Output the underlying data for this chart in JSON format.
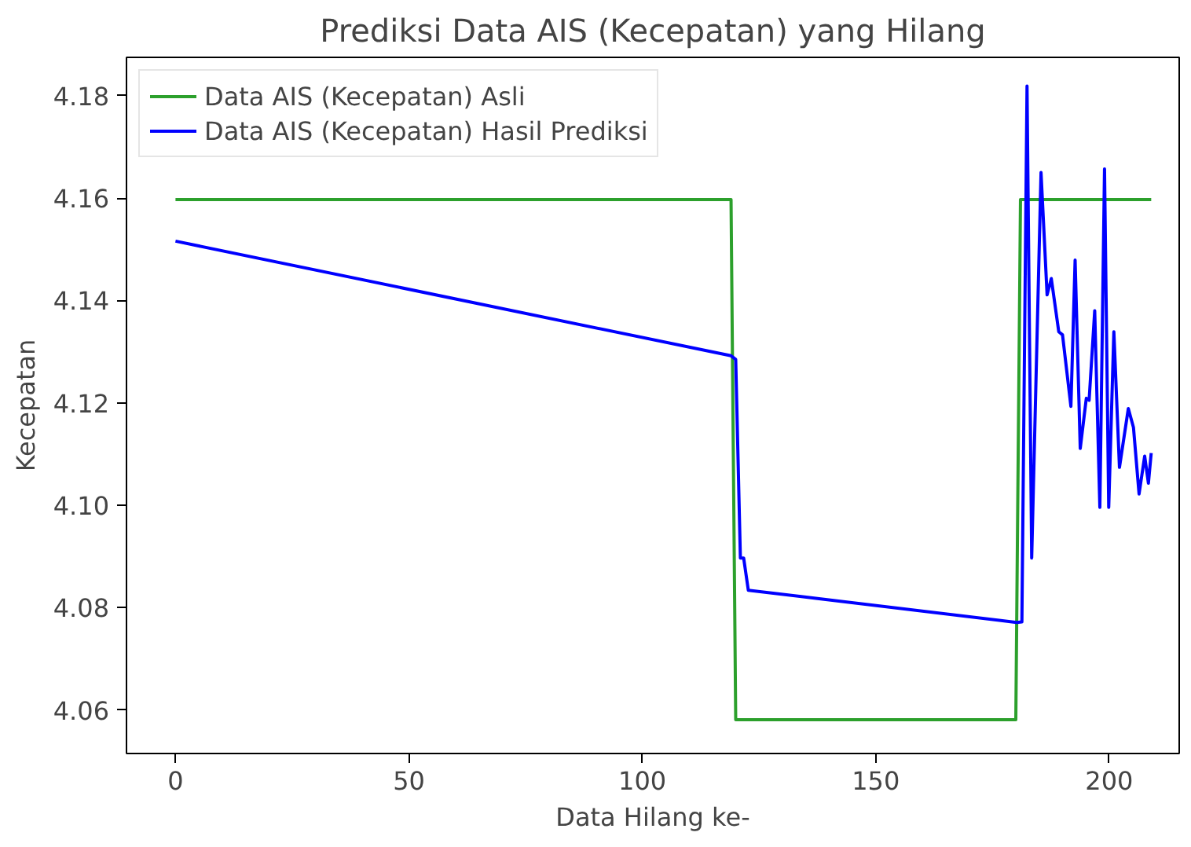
{
  "chart_data": {
    "type": "line",
    "title": "Prediksi Data AIS (Kecepatan) yang Hilang",
    "xlabel": "Data Hilang ke-",
    "ylabel": "Kecepatan",
    "xlim": [
      -10.5,
      215
    ],
    "ylim": [
      4.0515,
      4.1875
    ],
    "xticks": [
      0,
      50,
      100,
      150,
      200
    ],
    "yticks": [
      {
        "value": 4.06,
        "label": "4.06"
      },
      {
        "value": 4.08,
        "label": "4.08"
      },
      {
        "value": 4.1,
        "label": "4.10"
      },
      {
        "value": 4.12,
        "label": "4.12"
      },
      {
        "value": 4.14,
        "label": "4.14"
      },
      {
        "value": 4.16,
        "label": "4.16"
      },
      {
        "value": 4.18,
        "label": "4.18"
      }
    ],
    "grid": false,
    "legend": "top left",
    "line_style": "solid",
    "marker": "none",
    "series": [
      {
        "name": "Data AIS (Kecepatan) Asli",
        "color": "#2ca02c",
        "x": [
          0,
          119,
          120,
          180,
          181,
          209
        ],
        "values": [
          4.1597,
          4.1597,
          4.0581,
          4.0581,
          4.1597,
          4.1597
        ]
      },
      {
        "name": "Data AIS (Kecepatan) Hasil Prediksi",
        "color": "#0000ff",
        "x": [
          0,
          119,
          120,
          121,
          121.7,
          122.7,
          180.2,
          181.3,
          182.4,
          183.4,
          185.4,
          186.7,
          187.6,
          189.2,
          190,
          191.8,
          192.7,
          193.8,
          195.1,
          195.7,
          196.9,
          198,
          199,
          199.9,
          201,
          202.2,
          204.1,
          205.2,
          206.4,
          207.6,
          208.4,
          209
        ],
        "values": [
          4.1516,
          4.1292,
          4.1285,
          4.0897,
          4.0897,
          4.0834,
          4.0771,
          4.0772,
          4.1819,
          4.0897,
          4.165,
          4.1411,
          4.1443,
          4.1339,
          4.1333,
          4.1193,
          4.1479,
          4.1111,
          4.1209,
          4.1205,
          4.138,
          4.0996,
          4.1657,
          4.0996,
          4.1339,
          4.1074,
          4.1189,
          4.1152,
          4.1022,
          4.1096,
          4.1043,
          4.1102
        ]
      }
    ]
  }
}
